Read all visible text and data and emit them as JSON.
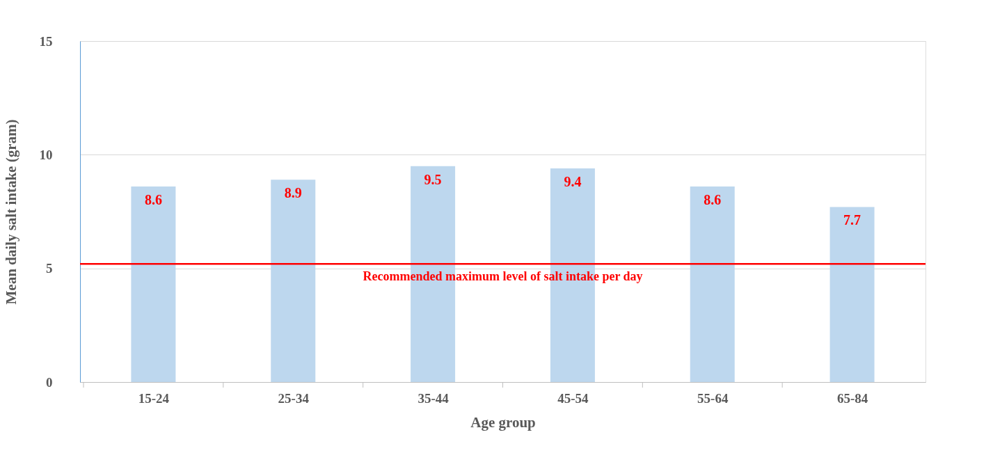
{
  "chart_data": {
    "type": "bar",
    "xlabel": "Age group",
    "ylabel": "Mean daily salt intake (gram)",
    "categories": [
      "15-24",
      "25-34",
      "35-44",
      "45-54",
      "55-64",
      "65-84"
    ],
    "values": [
      8.6,
      8.9,
      9.5,
      9.4,
      8.6,
      7.7
    ],
    "color": "#bdd7ee",
    "ylim": [
      0,
      15
    ],
    "yticks": [
      0,
      5,
      10,
      15
    ],
    "grid": "y",
    "data_labels": true,
    "ref_lines": [
      {
        "axis": "y",
        "value": 5.2,
        "label": "Recommended maximum level of salt intake per day",
        "color": "#ff0000"
      }
    ]
  }
}
